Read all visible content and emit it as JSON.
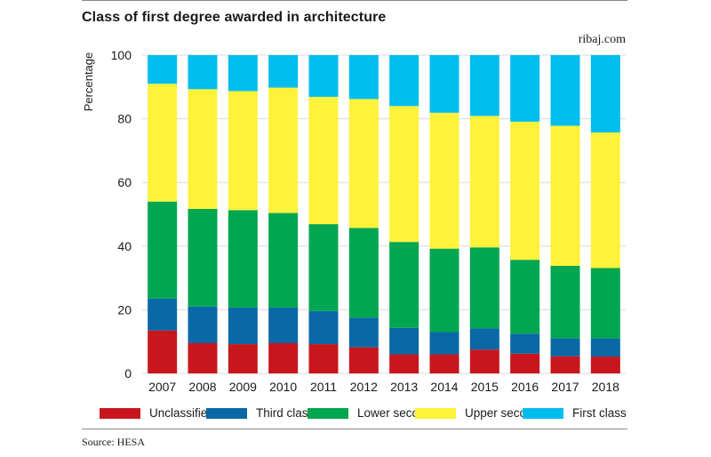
{
  "title": "Class of first degree awarded in architecture",
  "brand": "ribaj.com",
  "source": "Source: HESA",
  "colors": {
    "unclassified": "#c8161d",
    "third_class": "#0a68a6",
    "lower_second": "#00a650",
    "upper_second": "#fff23a",
    "first_class": "#00bdef"
  },
  "legend": [
    {
      "label": "Unclassified",
      "color": "#c8161d"
    },
    {
      "label": "Third class",
      "color": "#0a68a6"
    },
    {
      "label": "Lower second",
      "color": "#00a650"
    },
    {
      "label": "Upper second",
      "color": "#fff23a"
    },
    {
      "label": "First class",
      "color": "#00bdef"
    }
  ],
  "chart_data": {
    "type": "bar",
    "stacked": true,
    "title": "Class of first degree awarded in architecture",
    "xlabel": "",
    "ylabel": "Percentage",
    "ylim": [
      0,
      100
    ],
    "yticks": [
      0,
      20,
      40,
      60,
      80,
      100
    ],
    "grid": true,
    "legend_position": "bottom",
    "categories": [
      "2007",
      "2008",
      "2009",
      "2010",
      "2011",
      "2012",
      "2013",
      "2014",
      "2015",
      "2016",
      "2017",
      "2018"
    ],
    "series": [
      {
        "name": "Unclassified",
        "color": "#c8161d",
        "values": [
          13.5,
          9.5,
          9.2,
          9.5,
          9.2,
          8.2,
          6.0,
          6.0,
          7.5,
          6.2,
          5.4,
          5.3
        ]
      },
      {
        "name": "Third class",
        "color": "#0a68a6",
        "values": [
          10.0,
          11.5,
          11.5,
          11.2,
          10.4,
          9.3,
          8.3,
          7.0,
          6.7,
          6.3,
          5.6,
          5.7
        ]
      },
      {
        "name": "Lower second",
        "color": "#00a650",
        "values": [
          30.5,
          30.7,
          30.6,
          29.7,
          27.3,
          28.2,
          27.0,
          26.2,
          25.4,
          23.2,
          22.8,
          22.1
        ]
      },
      {
        "name": "Upper second",
        "color": "#fff23a",
        "values": [
          37.0,
          37.6,
          37.4,
          39.4,
          40.0,
          40.5,
          42.7,
          42.7,
          41.3,
          43.4,
          44.0,
          42.6
        ]
      },
      {
        "name": "First class",
        "color": "#00bdef",
        "values": [
          9.0,
          10.7,
          11.3,
          10.2,
          13.1,
          13.8,
          16.0,
          18.1,
          19.1,
          20.9,
          22.2,
          24.3
        ]
      }
    ]
  }
}
